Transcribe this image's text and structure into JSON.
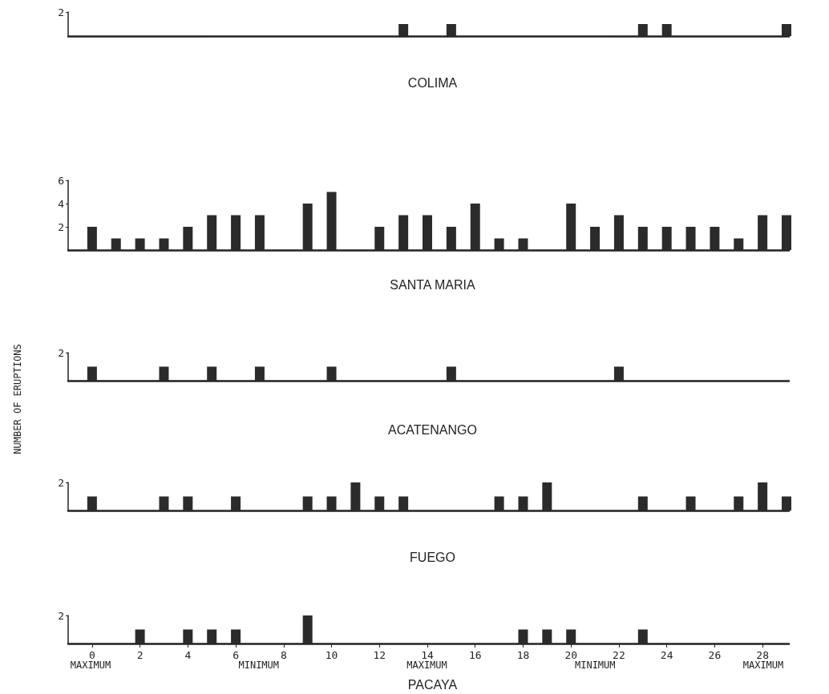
{
  "chart_data": [
    {
      "type": "bar",
      "title": "COLIMA",
      "x": [
        13,
        15,
        23,
        24,
        29
      ],
      "values": [
        1,
        1,
        1,
        1,
        1
      ],
      "color": "#2b2b2b",
      "xlim": [
        -1,
        29.1
      ],
      "ylim": [
        0,
        2
      ],
      "yticks": [
        2
      ],
      "tick_labels": "y"
    },
    {
      "type": "bar",
      "title": "SANTA MARIA",
      "x": [
        0,
        1,
        2,
        3,
        4,
        5,
        6,
        7,
        9,
        10,
        12,
        13,
        14,
        15,
        16,
        17,
        18,
        20,
        21,
        22,
        23,
        24,
        25,
        26,
        27,
        28,
        29
      ],
      "values": [
        2,
        1,
        1,
        1,
        2,
        3,
        3,
        3,
        4,
        5,
        2,
        3,
        3,
        2,
        4,
        1,
        1,
        4,
        2,
        3,
        2,
        2,
        2,
        2,
        1,
        3,
        3
      ],
      "color": "#2b2b2b",
      "xlim": [
        -1,
        29.1
      ],
      "ylim": [
        0,
        6
      ],
      "yticks": [
        2,
        4,
        6
      ],
      "tick_labels": "y"
    },
    {
      "type": "bar",
      "title": "ACATENANGO",
      "ylabel": "NUMBER OF ERUPTIONS",
      "x": [
        0,
        3,
        5,
        7,
        10,
        15,
        22
      ],
      "values": [
        1,
        1,
        1,
        1,
        1,
        1,
        1
      ],
      "color": "#2b2b2b",
      "xlim": [
        -1,
        29.1
      ],
      "ylim": [
        0,
        2
      ],
      "yticks": [
        2
      ],
      "tick_labels": "y"
    },
    {
      "type": "bar",
      "title": "FUEGO",
      "x": [
        0,
        3,
        4,
        6,
        9,
        10,
        11,
        12,
        13,
        17,
        18,
        19,
        23,
        25,
        27,
        28,
        29
      ],
      "values": [
        1,
        1,
        1,
        1,
        1,
        1,
        2,
        1,
        1,
        1,
        1,
        2,
        1,
        1,
        1,
        2,
        1
      ],
      "color": "#2b2b2b",
      "xlim": [
        -1,
        29.1
      ],
      "ylim": [
        0,
        2
      ],
      "yticks": [
        2
      ],
      "tick_labels": "y"
    },
    {
      "type": "bar",
      "title": "PACAYA",
      "x": [
        2,
        4,
        5,
        6,
        9,
        18,
        19,
        20,
        23
      ],
      "values": [
        1,
        1,
        1,
        1,
        2,
        1,
        1,
        1,
        1
      ],
      "color": "#2b2b2b",
      "xlim": [
        -1,
        29.1
      ],
      "ylim": [
        0,
        2
      ],
      "yticks": [
        2
      ],
      "xticks": [
        0,
        2,
        4,
        6,
        8,
        10,
        12,
        14,
        16,
        18,
        20,
        22,
        24,
        26,
        28
      ],
      "annotations": [
        "MAXIMUM",
        "MINIMUM",
        "MAXIMUM",
        "MINIMUM",
        "MAXIMUM"
      ]
    }
  ]
}
